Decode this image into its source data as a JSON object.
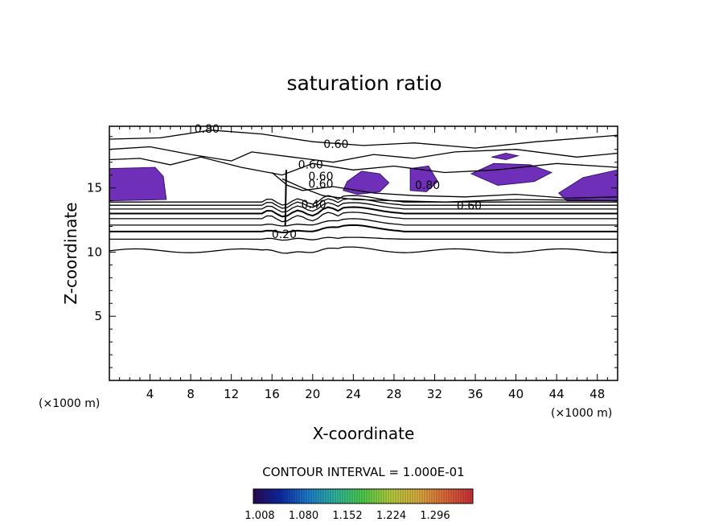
{
  "chart_data": {
    "type": "contour",
    "title": "saturation ratio",
    "xlabel": "X-coordinate",
    "ylabel": "Z-coordinate",
    "x_unit_label": "(×1000 m)",
    "y_unit_label": "(×1000 m)",
    "xlim": [
      0,
      50
    ],
    "ylim": [
      0,
      19.8
    ],
    "x_ticks": [
      "4",
      "8",
      "12",
      "16",
      "20",
      "24",
      "28",
      "32",
      "36",
      "40",
      "44",
      "48"
    ],
    "y_ticks": [
      "5",
      "10",
      "15"
    ],
    "contour_interval_text": "CONTOUR INTERVAL = 1.000E-01",
    "colorbar_ticks": [
      "1.008",
      "1.080",
      "1.152",
      "1.224",
      "1.296"
    ],
    "colorbar_colors": [
      "#2a0a55",
      "#0d2aa8",
      "#1f7fd0",
      "#2fb9a0",
      "#4fd04a",
      "#b8d040",
      "#e0b040",
      "#e06a3a",
      "#d0303a"
    ],
    "shade_color": "#6f2fb8",
    "contour_labels": [
      {
        "text": "0.80",
        "x": 9.6,
        "y": 19.3
      },
      {
        "text": "0.60",
        "x": 22.3,
        "y": 18.1
      },
      {
        "text": "0.60",
        "x": 19.8,
        "y": 16.5
      },
      {
        "text": "0.60",
        "x": 20.8,
        "y": 15.6
      },
      {
        "text": "0.60",
        "x": 20.8,
        "y": 15.0
      },
      {
        "text": "0.40",
        "x": 20.1,
        "y": 13.4
      },
      {
        "text": "0.80",
        "x": 31.3,
        "y": 14.9
      },
      {
        "text": "0.60",
        "x": 35.4,
        "y": 13.3
      },
      {
        "text": "0.20",
        "x": 17.2,
        "y": 11.1
      }
    ],
    "shaded_regions": [
      {
        "name": "left-edge",
        "points": [
          [
            0,
            16.5
          ],
          [
            4.5,
            16.6
          ],
          [
            5.3,
            15.9
          ],
          [
            5.6,
            14.1
          ],
          [
            0,
            14.0
          ]
        ]
      },
      {
        "name": "center",
        "points": [
          [
            23.4,
            15.5
          ],
          [
            24.8,
            16.3
          ],
          [
            26.6,
            16.1
          ],
          [
            27.5,
            15.4
          ],
          [
            26.6,
            14.7
          ],
          [
            24.4,
            14.5
          ],
          [
            23.0,
            14.8
          ]
        ]
      },
      {
        "name": "center-right",
        "points": [
          [
            29.6,
            16.5
          ],
          [
            31.4,
            16.7
          ],
          [
            32.3,
            15.5
          ],
          [
            31.2,
            14.7
          ],
          [
            29.6,
            14.8
          ]
        ]
      },
      {
        "name": "right-upper",
        "points": [
          [
            35.6,
            16.1
          ],
          [
            37.8,
            16.9
          ],
          [
            41.4,
            16.8
          ],
          [
            43.5,
            16.2
          ],
          [
            41.8,
            15.5
          ],
          [
            38.2,
            15.2
          ]
        ]
      },
      {
        "name": "right-edge",
        "points": [
          [
            44.2,
            14.6
          ],
          [
            46.6,
            15.8
          ],
          [
            50,
            16.4
          ],
          [
            50,
            14.0
          ],
          [
            45.0,
            14.0
          ]
        ]
      },
      {
        "name": "top-small",
        "points": [
          [
            37.6,
            17.4
          ],
          [
            39.0,
            17.7
          ],
          [
            40.2,
            17.5
          ],
          [
            39.0,
            17.2
          ]
        ]
      }
    ],
    "grid": false
  }
}
